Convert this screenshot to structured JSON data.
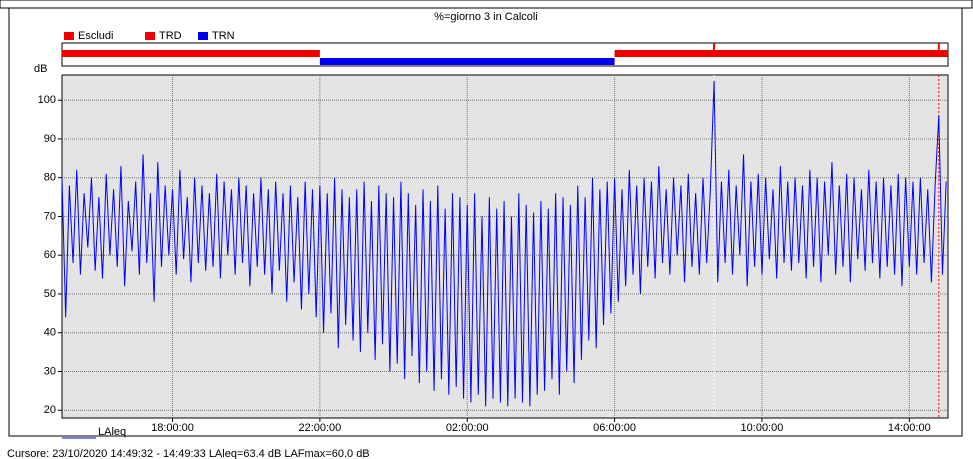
{
  "chart_data": {
    "type": "line",
    "title": "%=giorno 3 in Calcoli",
    "y_label": "dB",
    "footer": "Cursore: 23/10/2020 14:49:32 - 14:49:33  LAleq=63.4 dB  LAFmax=60.0 dB",
    "grid": true,
    "band_legend": [
      {
        "name": "Escludi",
        "color": "#ee0000"
      },
      {
        "name": "TRD",
        "color": "#ee0000"
      },
      {
        "name": "TRN",
        "color": "#0000ee"
      }
    ],
    "bands": [
      {
        "start": 15,
        "end": 22,
        "color": "#ee0000"
      },
      {
        "start": 22,
        "end": 30,
        "color": "#0000ee"
      },
      {
        "start": 30,
        "end": 39.05,
        "color": "#ee0000"
      }
    ],
    "markers": [
      {
        "x": 32.7,
        "color": "#ffffff"
      },
      {
        "x": 38.8,
        "color": "#ff0000"
      }
    ],
    "xlim": [
      15,
      39.05
    ],
    "ylim": [
      18,
      106.5
    ],
    "xticks": [
      {
        "value": 18,
        "label": "18:00:00"
      },
      {
        "value": 22,
        "label": "22:00:00"
      },
      {
        "value": 26,
        "label": "02:00:00"
      },
      {
        "value": 30,
        "label": "06:00:00"
      },
      {
        "value": 34,
        "label": "10:00:00"
      },
      {
        "value": 38,
        "label": "14:00:00"
      }
    ],
    "yticks": [
      20,
      30,
      40,
      50,
      60,
      70,
      80,
      90,
      100
    ],
    "x": [
      15,
      15.1,
      15.2,
      15.3,
      15.4,
      15.5,
      15.6,
      15.7,
      15.8,
      15.9,
      16,
      16.1,
      16.2,
      16.3,
      16.4,
      16.5,
      16.6,
      16.7,
      16.8,
      16.9,
      17,
      17.1,
      17.2,
      17.3,
      17.4,
      17.5,
      17.6,
      17.7,
      17.8,
      17.9,
      18,
      18.1,
      18.2,
      18.3,
      18.4,
      18.5,
      18.6,
      18.7,
      18.8,
      18.9,
      19,
      19.1,
      19.2,
      19.3,
      19.4,
      19.5,
      19.6,
      19.7,
      19.8,
      19.9,
      20,
      20.1,
      20.2,
      20.3,
      20.4,
      20.5,
      20.6,
      20.7,
      20.8,
      20.9,
      21,
      21.1,
      21.2,
      21.3,
      21.4,
      21.5,
      21.6,
      21.7,
      21.8,
      21.9,
      22,
      22.1,
      22.2,
      22.3,
      22.4,
      22.5,
      22.6,
      22.7,
      22.8,
      22.9,
      23,
      23.1,
      23.2,
      23.3,
      23.4,
      23.5,
      23.6,
      23.7,
      23.8,
      23.9,
      24,
      24.1,
      24.2,
      24.3,
      24.4,
      24.5,
      24.6,
      24.7,
      24.8,
      24.9,
      25,
      25.1,
      25.2,
      25.3,
      25.4,
      25.5,
      25.6,
      25.7,
      25.8,
      25.9,
      26,
      26.1,
      26.2,
      26.3,
      26.4,
      26.5,
      26.6,
      26.7,
      26.8,
      26.9,
      27,
      27.1,
      27.2,
      27.3,
      27.4,
      27.5,
      27.6,
      27.7,
      27.8,
      27.9,
      28,
      28.1,
      28.2,
      28.3,
      28.4,
      28.5,
      28.6,
      28.7,
      28.8,
      28.9,
      29,
      29.1,
      29.2,
      29.3,
      29.4,
      29.5,
      29.6,
      29.7,
      29.8,
      29.9,
      30,
      30.1,
      30.2,
      30.3,
      30.4,
      30.5,
      30.6,
      30.7,
      30.8,
      30.9,
      31,
      31.1,
      31.2,
      31.3,
      31.4,
      31.5,
      31.6,
      31.7,
      31.8,
      31.9,
      32,
      32.1,
      32.2,
      32.3,
      32.4,
      32.5,
      32.6,
      32.7,
      32.8,
      32.9,
      33,
      33.1,
      33.2,
      33.3,
      33.4,
      33.5,
      33.6,
      33.7,
      33.8,
      33.9,
      34,
      34.1,
      34.2,
      34.3,
      34.4,
      34.5,
      34.6,
      34.7,
      34.8,
      34.9,
      35,
      35.1,
      35.2,
      35.3,
      35.4,
      35.5,
      35.6,
      35.7,
      35.8,
      35.9,
      36,
      36.1,
      36.2,
      36.3,
      36.4,
      36.5,
      36.6,
      36.7,
      36.8,
      36.9,
      37,
      37.1,
      37.2,
      37.3,
      37.4,
      37.5,
      37.6,
      37.7,
      37.8,
      37.9,
      38,
      38.1,
      38.2,
      38.3,
      38.4,
      38.5,
      38.6,
      38.7,
      38.8,
      38.9,
      39
    ],
    "series": [
      {
        "name": "LAleq",
        "color": "#0000ff",
        "values": [
          80,
          44,
          78,
          58,
          82,
          55,
          76,
          62,
          80,
          56,
          75,
          54,
          81,
          60,
          77,
          57,
          83,
          52,
          74,
          61,
          79,
          55,
          86,
          58,
          76,
          48,
          84,
          57,
          78,
          60,
          77,
          55,
          82,
          59,
          75,
          53,
          80,
          58,
          78,
          56,
          76,
          57,
          81,
          54,
          79,
          60,
          77,
          55,
          80,
          58,
          78,
          52,
          76,
          57,
          80,
          55,
          77,
          50,
          79,
          56,
          76,
          48,
          78,
          53,
          75,
          46,
          79,
          50,
          77,
          44,
          78,
          40,
          76,
          45,
          80,
          36,
          77,
          42,
          75,
          38,
          77,
          35,
          79,
          40,
          74,
          33,
          78,
          37,
          76,
          30,
          75,
          32,
          79,
          28,
          76,
          34,
          73,
          27,
          77,
          30,
          74,
          25,
          78,
          28,
          72,
          24,
          76,
          26,
          75,
          23,
          73,
          22,
          76,
          24,
          70,
          21,
          75,
          23,
          72,
          22,
          74,
          21,
          70,
          23,
          76,
          22,
          73,
          21,
          71,
          24,
          74,
          25,
          72,
          28,
          76,
          24,
          75,
          30,
          73,
          27,
          78,
          33,
          75,
          38,
          80,
          36,
          77,
          42,
          79,
          45,
          80,
          48,
          77,
          52,
          82,
          55,
          78,
          50,
          80,
          57,
          79,
          54,
          83,
          58,
          77,
          55,
          80,
          60,
          78,
          53,
          81,
          57,
          76,
          55,
          80,
          58,
          77,
          105,
          53,
          79,
          58,
          82,
          55,
          78,
          60,
          86,
          52,
          79,
          57,
          81,
          55,
          80,
          59,
          77,
          54,
          83,
          58,
          79,
          56,
          80,
          58,
          78,
          54,
          82,
          57,
          80,
          53,
          79,
          60,
          84,
          55,
          78,
          57,
          81,
          53,
          80,
          59,
          77,
          56,
          82,
          58,
          79,
          54,
          80,
          57,
          78,
          55,
          81,
          52,
          80,
          57,
          79,
          55,
          80,
          58,
          77,
          53,
          78,
          96,
          55,
          79
        ]
      }
    ]
  }
}
